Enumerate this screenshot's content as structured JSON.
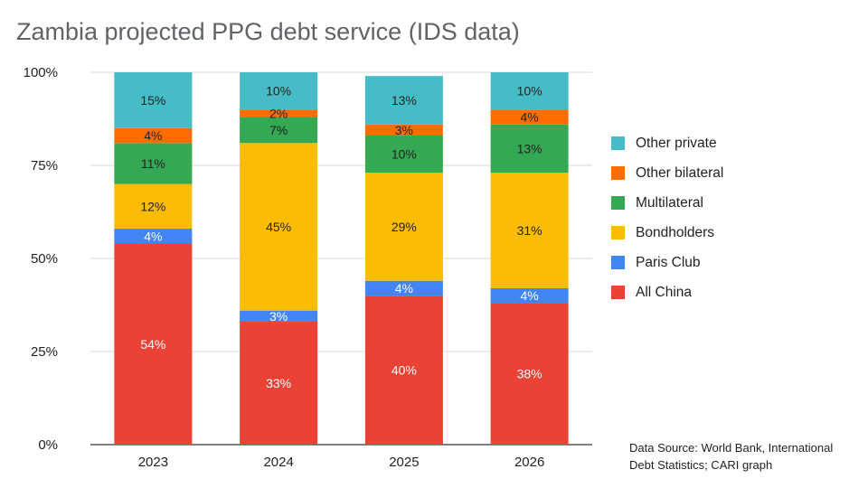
{
  "chart_data": {
    "type": "bar",
    "stacked": true,
    "title": "Zambia projected PPG debt service (IDS data)",
    "categories": [
      "2023",
      "2024",
      "2025",
      "2026"
    ],
    "y_ticks": [
      "0%",
      "25%",
      "50%",
      "75%",
      "100%"
    ],
    "y_tick_values": [
      0,
      25,
      50,
      75,
      100
    ],
    "ylim": [
      0,
      100
    ],
    "xlabel": "",
    "ylabel": "",
    "series": [
      {
        "name": "All China",
        "color": "#ea4335",
        "values": [
          54,
          33,
          40,
          38
        ],
        "labels": [
          "54%",
          "33%",
          "40%",
          "38%"
        ]
      },
      {
        "name": "Paris Club",
        "color": "#4285f4",
        "values": [
          4,
          3,
          4,
          4
        ],
        "labels": [
          "4%",
          "3%",
          "4%",
          "4%"
        ]
      },
      {
        "name": "Bondholders",
        "color": "#fbbc04",
        "values": [
          12,
          45,
          29,
          31
        ],
        "labels": [
          "12%",
          "45%",
          "29%",
          "31%"
        ]
      },
      {
        "name": "Multilateral",
        "color": "#34a853",
        "values": [
          11,
          7,
          10,
          13
        ],
        "labels": [
          "11%",
          "7%",
          "10%",
          "13%"
        ]
      },
      {
        "name": "Other bilateral",
        "color": "#ff6d01",
        "values": [
          4,
          2,
          3,
          4
        ],
        "labels": [
          "4%",
          "2%",
          "3%",
          "4%"
        ]
      },
      {
        "name": "Other private",
        "color": "#46bdc6",
        "values": [
          15,
          10,
          13,
          10
        ],
        "labels": [
          "15%",
          "10%",
          "13%",
          "10%"
        ]
      }
    ],
    "legend_order": [
      "Other private",
      "Other bilateral",
      "Multilateral",
      "Bondholders",
      "Paris Club",
      "All China"
    ],
    "legend_position": "right",
    "grid": true
  },
  "source": {
    "line1": "Data Source: World Bank, International",
    "line2": "Debt Statistics; CARI graph"
  }
}
